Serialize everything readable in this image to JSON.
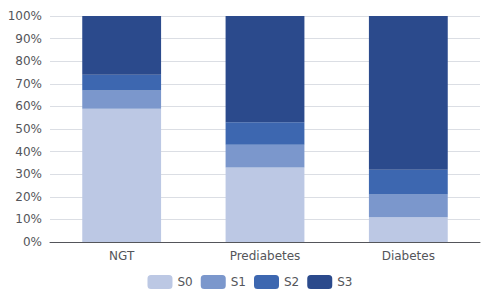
{
  "chart_data": {
    "type": "bar",
    "stacked": true,
    "categories": [
      "NGT",
      "Prediabetes",
      "Diabetes"
    ],
    "series": [
      {
        "name": "S0",
        "color": "#bcc8e4",
        "values": [
          0.59,
          0.33,
          0.11
        ]
      },
      {
        "name": "S1",
        "color": "#7b97cc",
        "values": [
          0.08,
          0.1,
          0.1
        ]
      },
      {
        "name": "S2",
        "color": "#3d67b0",
        "values": [
          0.07,
          0.1,
          0.11
        ]
      },
      {
        "name": "S3",
        "color": "#2b4a8c",
        "values": [
          0.26,
          0.47,
          0.68
        ]
      }
    ],
    "ylim": [
      0,
      1.0
    ],
    "yticks": [
      {
        "value": 0.0,
        "label": "0%"
      },
      {
        "value": 0.1,
        "label": "10%"
      },
      {
        "value": 0.2,
        "label": "20%"
      },
      {
        "value": 0.3,
        "label": "30%"
      },
      {
        "value": 0.4,
        "label": "40%"
      },
      {
        "value": 0.5,
        "label": "50%"
      },
      {
        "value": 0.6,
        "label": "60%"
      },
      {
        "value": 0.7,
        "label": "70%"
      },
      {
        "value": 0.8,
        "label": "80%"
      },
      {
        "value": 0.9,
        "label": "90%"
      },
      {
        "value": 1.0,
        "label": "100%"
      }
    ],
    "grid": true,
    "legend": "bottom"
  }
}
